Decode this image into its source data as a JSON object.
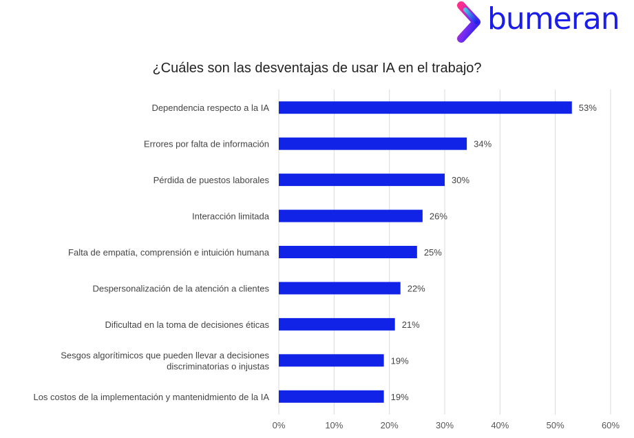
{
  "brand": {
    "name": "bumeran",
    "color": "#1a1ee8",
    "icon": "chevron-logo-icon"
  },
  "chart_data": {
    "type": "bar",
    "orientation": "horizontal",
    "title": "¿Cuáles son las desventajas de usar IA en el trabajo?",
    "categories": [
      [
        "Dependencia  respecto a la IA"
      ],
      [
        "Errores por falta de información"
      ],
      [
        "Pérdida de puestos laborales"
      ],
      [
        "Interacción limitada"
      ],
      [
        "Falta de empatía, comprensión e intuición humana"
      ],
      [
        "Despersonalización de la atención a clientes"
      ],
      [
        "Dificultad en la toma de decisiones éticas"
      ],
      [
        "Sesgos algorítimicos que pueden llevar a decisiones",
        "discriminatorias o injustas"
      ],
      [
        "Los costos de la implementación y mantenidmiento de la IA"
      ]
    ],
    "values": [
      53,
      34,
      30,
      26,
      25,
      22,
      21,
      19,
      19
    ],
    "value_labels": [
      "53%",
      "34%",
      "30%",
      "26%",
      "25%",
      "22%",
      "21%",
      "19%",
      "19%"
    ],
    "xlim": [
      0,
      60
    ],
    "xticks": [
      0,
      10,
      20,
      30,
      40,
      50,
      60
    ],
    "xtick_labels": [
      "0%",
      "10%",
      "20%",
      "30%",
      "40%",
      "50%",
      "60%"
    ],
    "grid": "vertical",
    "bar_color": "#1023e6",
    "xlabel": "",
    "ylabel": ""
  }
}
